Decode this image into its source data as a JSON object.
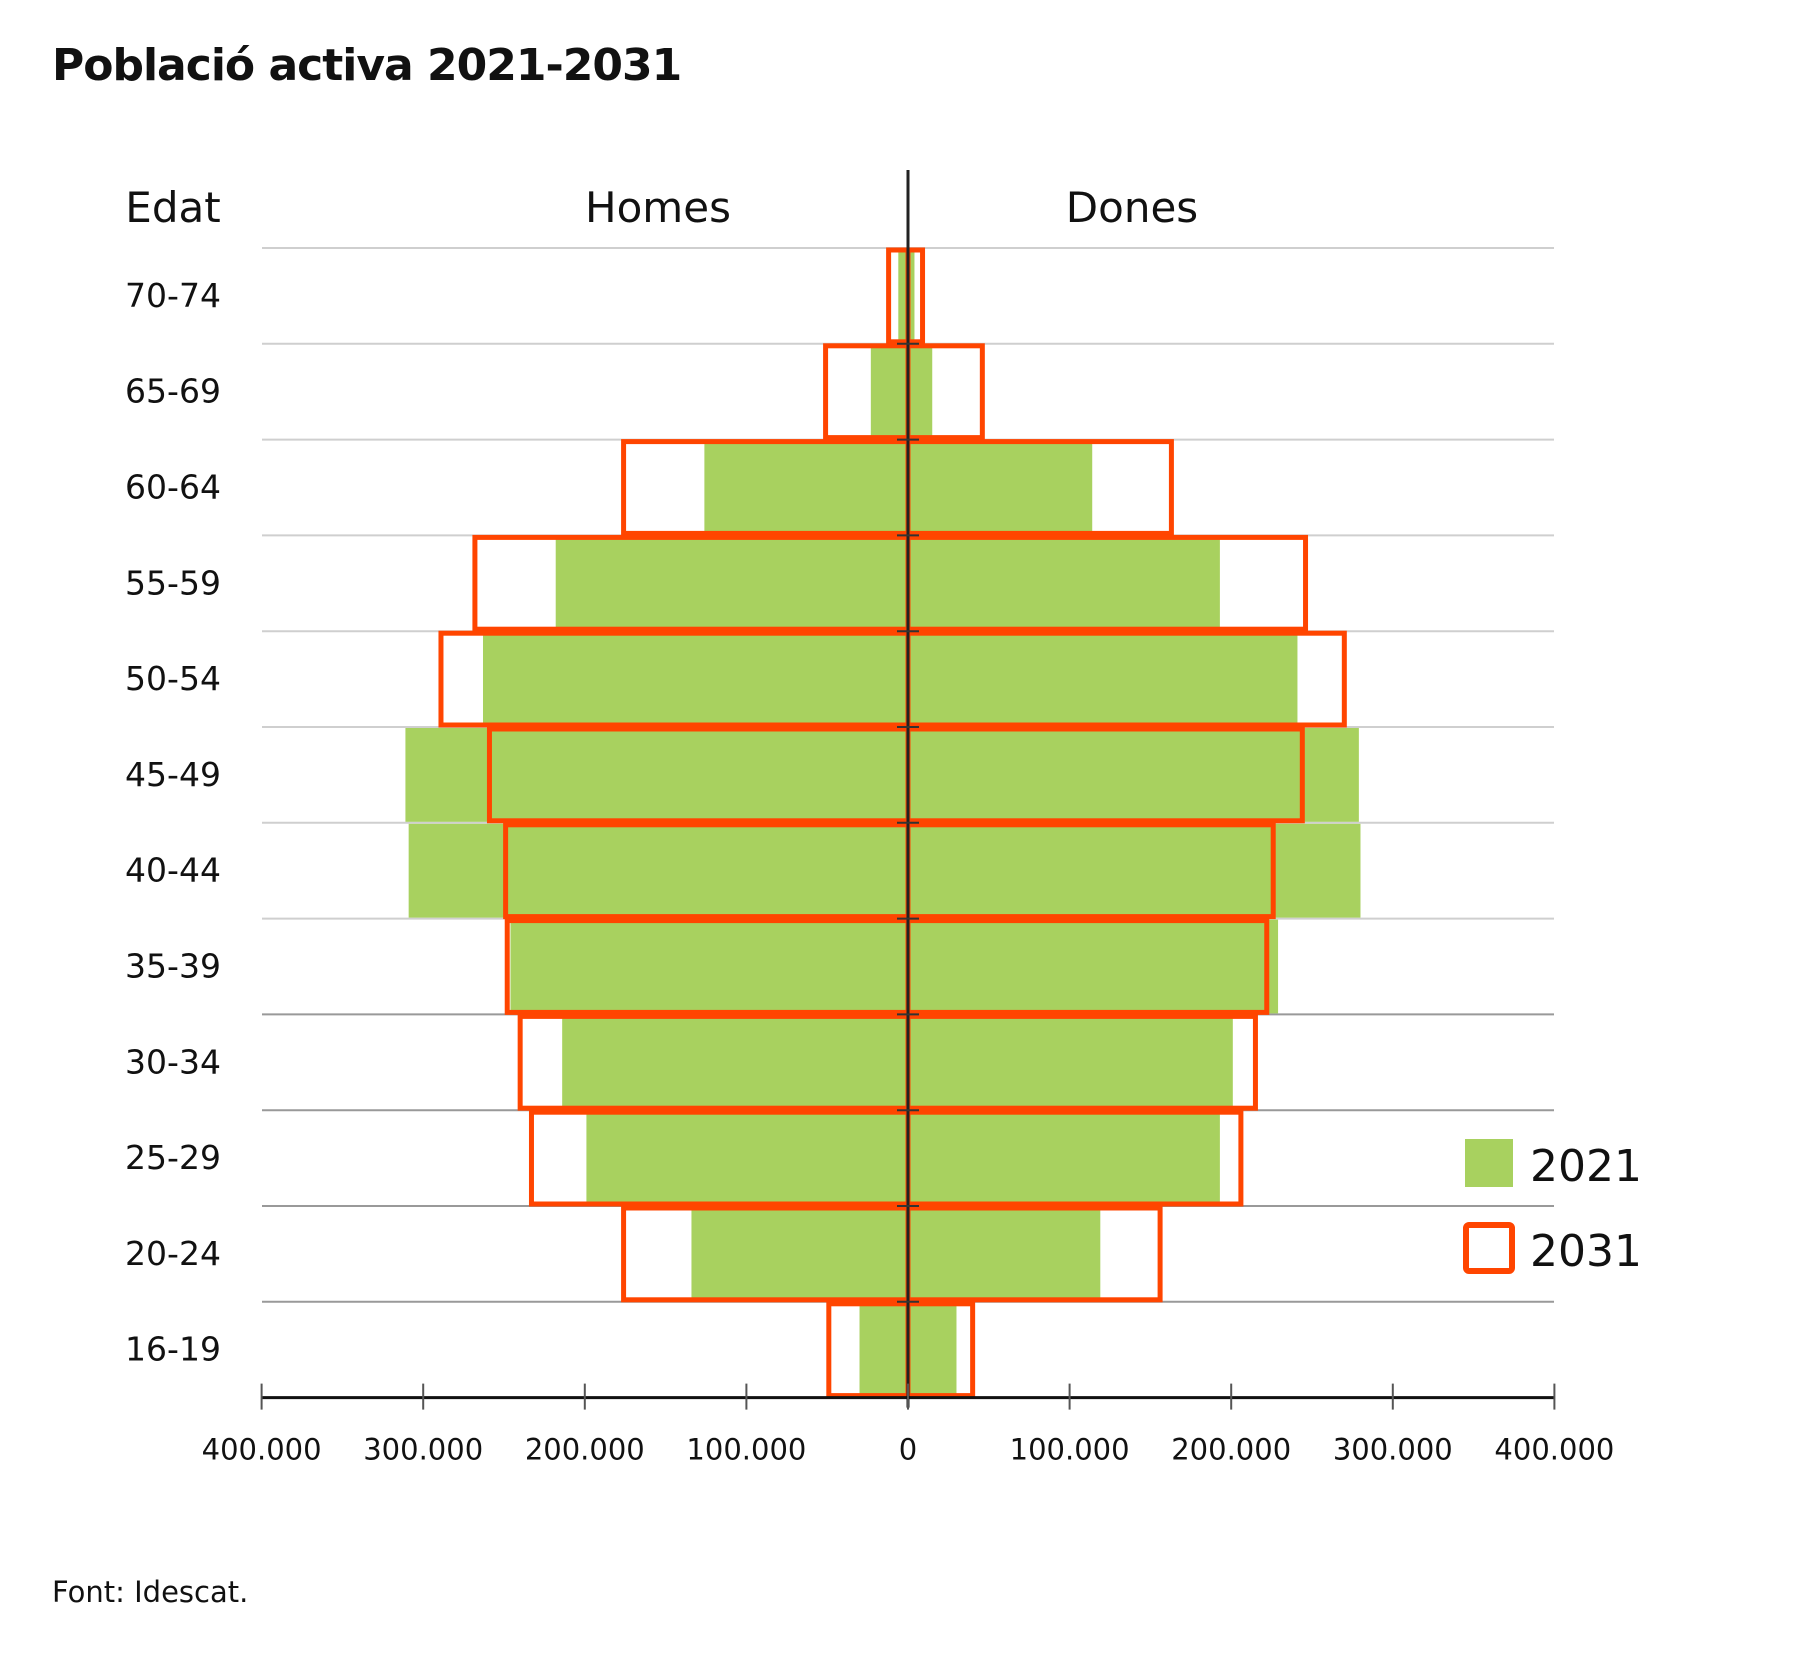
{
  "title": "Població activa 2021-2031",
  "source": "Font: Idescat.",
  "chart_data": {
    "type": "bar",
    "subtype": "population-pyramid",
    "title": "Població activa 2021-2031",
    "y_axis_title": "Edat",
    "left_label": "Homes",
    "right_label": "Dones",
    "categories": [
      "70-74",
      "65-69",
      "60-64",
      "55-59",
      "50-54",
      "45-49",
      "40-44",
      "35-39",
      "30-34",
      "25-29",
      "20-24",
      "16-19"
    ],
    "xlim": [
      -400000,
      400000
    ],
    "x_ticks": [
      -400000,
      -300000,
      -200000,
      -100000,
      0,
      100000,
      200000,
      300000,
      400000
    ],
    "x_tick_labels": [
      "400.000",
      "300.000",
      "200.000",
      "100.000",
      "0",
      "100.000",
      "200.000",
      "300.000",
      "400.000"
    ],
    "series": [
      {
        "name": "2021",
        "style": "filled",
        "color": "#a8d15f",
        "homes": [
          6000,
          23000,
          126000,
          218000,
          263000,
          311000,
          309000,
          246000,
          214000,
          199000,
          134000,
          30000
        ],
        "dones": [
          4000,
          15000,
          114000,
          193000,
          241000,
          279000,
          280000,
          229000,
          201000,
          193000,
          119000,
          30000
        ]
      },
      {
        "name": "2031",
        "style": "outline",
        "color": "#ff4500",
        "homes": [
          12000,
          51000,
          176000,
          268000,
          289000,
          259000,
          249000,
          248000,
          240000,
          233000,
          176000,
          49000
        ],
        "dones": [
          9000,
          46000,
          163000,
          246000,
          270000,
          244000,
          226000,
          222000,
          215000,
          206000,
          156000,
          40000
        ]
      }
    ],
    "legend": [
      {
        "label": "2021"
      },
      {
        "label": "2031"
      }
    ],
    "legend_position": "right",
    "grid": true
  }
}
